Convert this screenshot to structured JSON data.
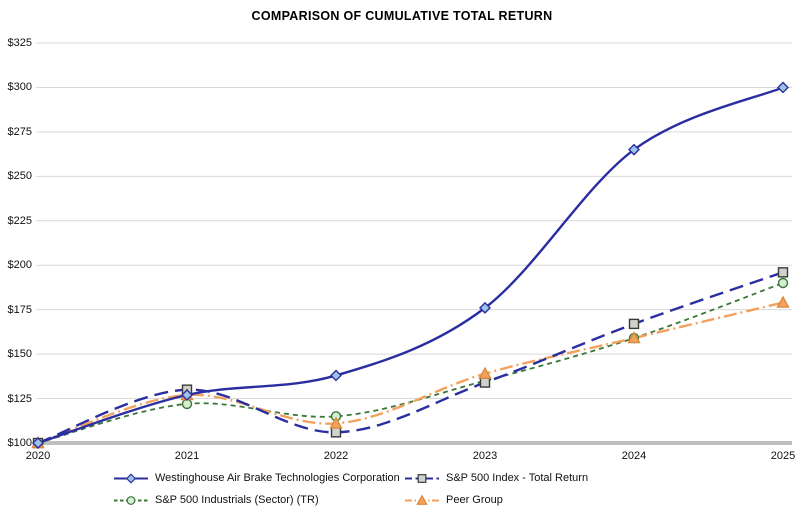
{
  "title": "COMPARISON OF CUMULATIVE TOTAL RETURN",
  "chart_data": {
    "type": "line",
    "title": "COMPARISON OF CUMULATIVE TOTAL RETURN",
    "x_labels": [
      "2020",
      "2021",
      "2022",
      "2023",
      "2024",
      "2025"
    ],
    "y_tick_labels": [
      "$100",
      "$125",
      "$150",
      "$175",
      "$200",
      "$225",
      "$250",
      "$275",
      "$300",
      "$325"
    ],
    "y_tick_values": [
      100,
      125,
      150,
      175,
      200,
      225,
      250,
      275,
      300,
      325
    ],
    "ylim": [
      100,
      325
    ],
    "grid": true,
    "legend_position": "bottom",
    "baseline_value": 100,
    "series": [
      {
        "name": "Westinghouse Air Brake Technologies Corporation",
        "values": [
          100,
          127,
          138,
          176,
          265,
          300
        ],
        "color": "#2B2EA1",
        "line_style": "solid",
        "marker": "diamond",
        "marker_fill": "#9DC3E6",
        "marker_stroke": "#2B2EA1"
      },
      {
        "name": "S&P 500 Index - Total Return",
        "values": [
          100,
          130,
          106,
          134,
          167,
          196
        ],
        "color": "#2B2EA1",
        "line_style": "long-dash",
        "marker": "square",
        "marker_fill": "#CFD3CC",
        "marker_stroke": "#3A3A3A"
      },
      {
        "name": "S&P 500 Industrials (Sector) (TR)",
        "values": [
          100,
          122,
          115,
          135,
          159,
          190
        ],
        "color": "#3A7737",
        "line_style": "short-dash",
        "marker": "circle",
        "marker_fill": "#D6EDD2",
        "marker_stroke": "#3A7737"
      },
      {
        "name": "Peer Group",
        "values": [
          100,
          127,
          111,
          139,
          159,
          179
        ],
        "color": "#F2A15F",
        "line_style": "dash-dot-dot",
        "marker": "triangle",
        "marker_fill": "#F2A15F",
        "marker_stroke": "#DB8A3E"
      }
    ],
    "colors": {
      "gridline": "#D9D9D9",
      "baseline": "#BFBFBF",
      "background": "#FFFFFF",
      "text": "#111111"
    }
  }
}
